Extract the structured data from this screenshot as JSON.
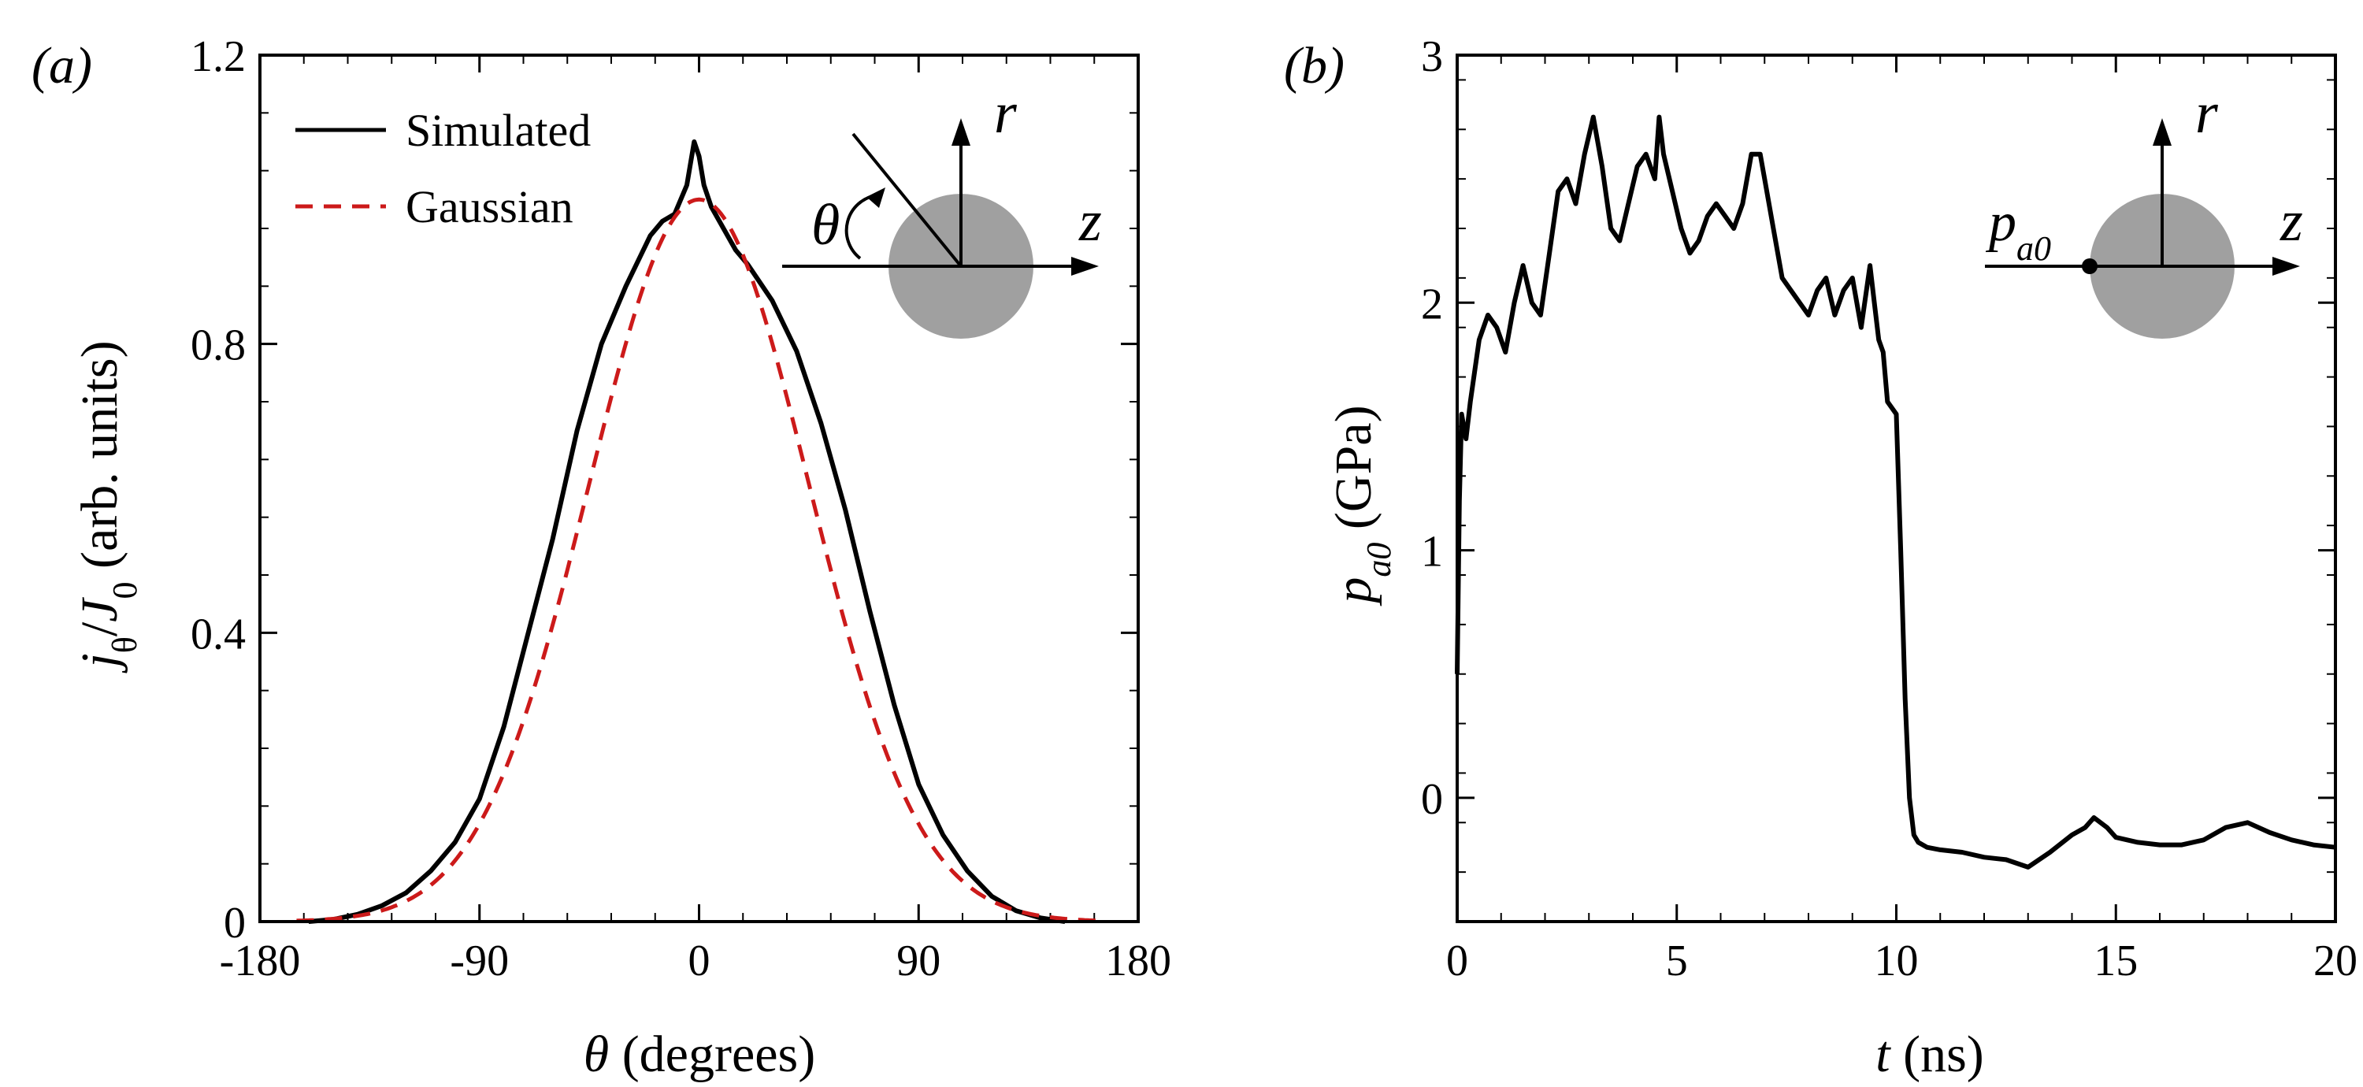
{
  "chart_data": [
    {
      "panel": "(a)",
      "type": "line",
      "xlabel_symbol": "θ",
      "xlabel_text": " (degrees)",
      "ylabel_parts": [
        "j",
        "θ",
        "/",
        "J",
        "0",
        " (arb. units)"
      ],
      "xlim": [
        -180,
        180
      ],
      "ylim": [
        0,
        1.2
      ],
      "xticks": [
        -180,
        -90,
        0,
        90,
        180
      ],
      "xtick_labels": [
        "-180",
        "-90",
        "0",
        "90",
        "180"
      ],
      "yticks": [
        0,
        0.4,
        0.8,
        1.2
      ],
      "ytick_labels": [
        "0",
        "0.4",
        "0.8",
        "1.2"
      ],
      "legend": {
        "position": "top-left",
        "entries": [
          "Simulated",
          "Gaussian"
        ]
      },
      "series": [
        {
          "name": "Simulated",
          "style": "solid",
          "color": "#000000",
          "x": [
            -160,
            -150,
            -140,
            -130,
            -120,
            -110,
            -100,
            -90,
            -80,
            -70,
            -60,
            -50,
            -40,
            -30,
            -20,
            -15,
            -10,
            -5,
            -2,
            0,
            2,
            5,
            10,
            15,
            20,
            30,
            40,
            50,
            60,
            70,
            80,
            90,
            100,
            110,
            120,
            130,
            140,
            150
          ],
          "y": [
            0.0,
            0.003,
            0.01,
            0.022,
            0.04,
            0.07,
            0.11,
            0.17,
            0.27,
            0.4,
            0.53,
            0.68,
            0.8,
            0.88,
            0.95,
            0.97,
            0.98,
            1.02,
            1.08,
            1.06,
            1.02,
            0.99,
            0.96,
            0.93,
            0.91,
            0.86,
            0.79,
            0.69,
            0.57,
            0.43,
            0.3,
            0.19,
            0.12,
            0.07,
            0.035,
            0.015,
            0.005,
            0.0
          ]
        },
        {
          "name": "Gaussian",
          "style": "dashed",
          "color": "#cc1a1a",
          "sigma_deg": 45,
          "x_range": [
            -165,
            165
          ]
        }
      ],
      "inset": {
        "labels": [
          "r",
          "z",
          "θ"
        ]
      }
    },
    {
      "panel": "(b)",
      "type": "line",
      "xlabel_symbol": "t",
      "xlabel_text": " (ns)",
      "ylabel_parts": [
        "p",
        "a0",
        " (GPa)"
      ],
      "xlim": [
        0,
        20
      ],
      "ylim": [
        -0.5,
        3
      ],
      "xticks": [
        0,
        5,
        10,
        15,
        20
      ],
      "xtick_labels": [
        "0",
        "5",
        "10",
        "15",
        "20"
      ],
      "yticks": [
        0,
        1,
        2,
        3
      ],
      "ytick_labels": [
        "0",
        "1",
        "2",
        "3"
      ],
      "series": [
        {
          "name": "p_a0",
          "color": "#000000",
          "x": [
            0,
            0.05,
            0.1,
            0.2,
            0.3,
            0.5,
            0.7,
            0.9,
            1.1,
            1.3,
            1.5,
            1.7,
            1.9,
            2.1,
            2.3,
            2.5,
            2.7,
            2.9,
            3.1,
            3.3,
            3.5,
            3.7,
            3.9,
            4.1,
            4.3,
            4.5,
            4.6,
            4.7,
            4.9,
            5.1,
            5.3,
            5.5,
            5.7,
            5.9,
            6.1,
            6.3,
            6.5,
            6.7,
            6.9,
            7.0,
            7.2,
            7.4,
            7.6,
            7.8,
            8.0,
            8.2,
            8.4,
            8.6,
            8.8,
            9.0,
            9.2,
            9.4,
            9.5,
            9.6,
            9.7,
            9.8,
            10.0,
            10.1,
            10.2,
            10.3,
            10.4,
            10.5,
            10.7,
            11.0,
            11.5,
            12.0,
            12.5,
            13.0,
            13.5,
            14.0,
            14.3,
            14.5,
            14.8,
            15.0,
            15.5,
            16.0,
            16.5,
            17.0,
            17.5,
            18.0,
            18.5,
            19.0,
            19.5,
            20.0
          ],
          "y": [
            0.5,
            1.2,
            1.55,
            1.45,
            1.6,
            1.85,
            1.95,
            1.9,
            1.8,
            2.0,
            2.15,
            2.0,
            1.95,
            2.2,
            2.45,
            2.5,
            2.4,
            2.6,
            2.75,
            2.55,
            2.3,
            2.25,
            2.4,
            2.55,
            2.6,
            2.5,
            2.75,
            2.6,
            2.45,
            2.3,
            2.2,
            2.25,
            2.35,
            2.4,
            2.35,
            2.3,
            2.4,
            2.6,
            2.6,
            2.5,
            2.3,
            2.1,
            2.05,
            2.0,
            1.95,
            2.05,
            2.1,
            1.95,
            2.05,
            2.1,
            1.9,
            2.15,
            2.0,
            1.85,
            1.8,
            1.6,
            1.55,
            1.0,
            0.4,
            0.0,
            -0.15,
            -0.18,
            -0.2,
            -0.21,
            -0.22,
            -0.24,
            -0.25,
            -0.28,
            -0.22,
            -0.15,
            -0.12,
            -0.08,
            -0.12,
            -0.16,
            -0.18,
            -0.19,
            -0.19,
            -0.17,
            -0.12,
            -0.1,
            -0.14,
            -0.17,
            -0.19,
            -0.2
          ]
        }
      ],
      "inset": {
        "labels": [
          "r",
          "z"
        ],
        "point_label_parts": [
          "p",
          "a0"
        ]
      }
    }
  ]
}
